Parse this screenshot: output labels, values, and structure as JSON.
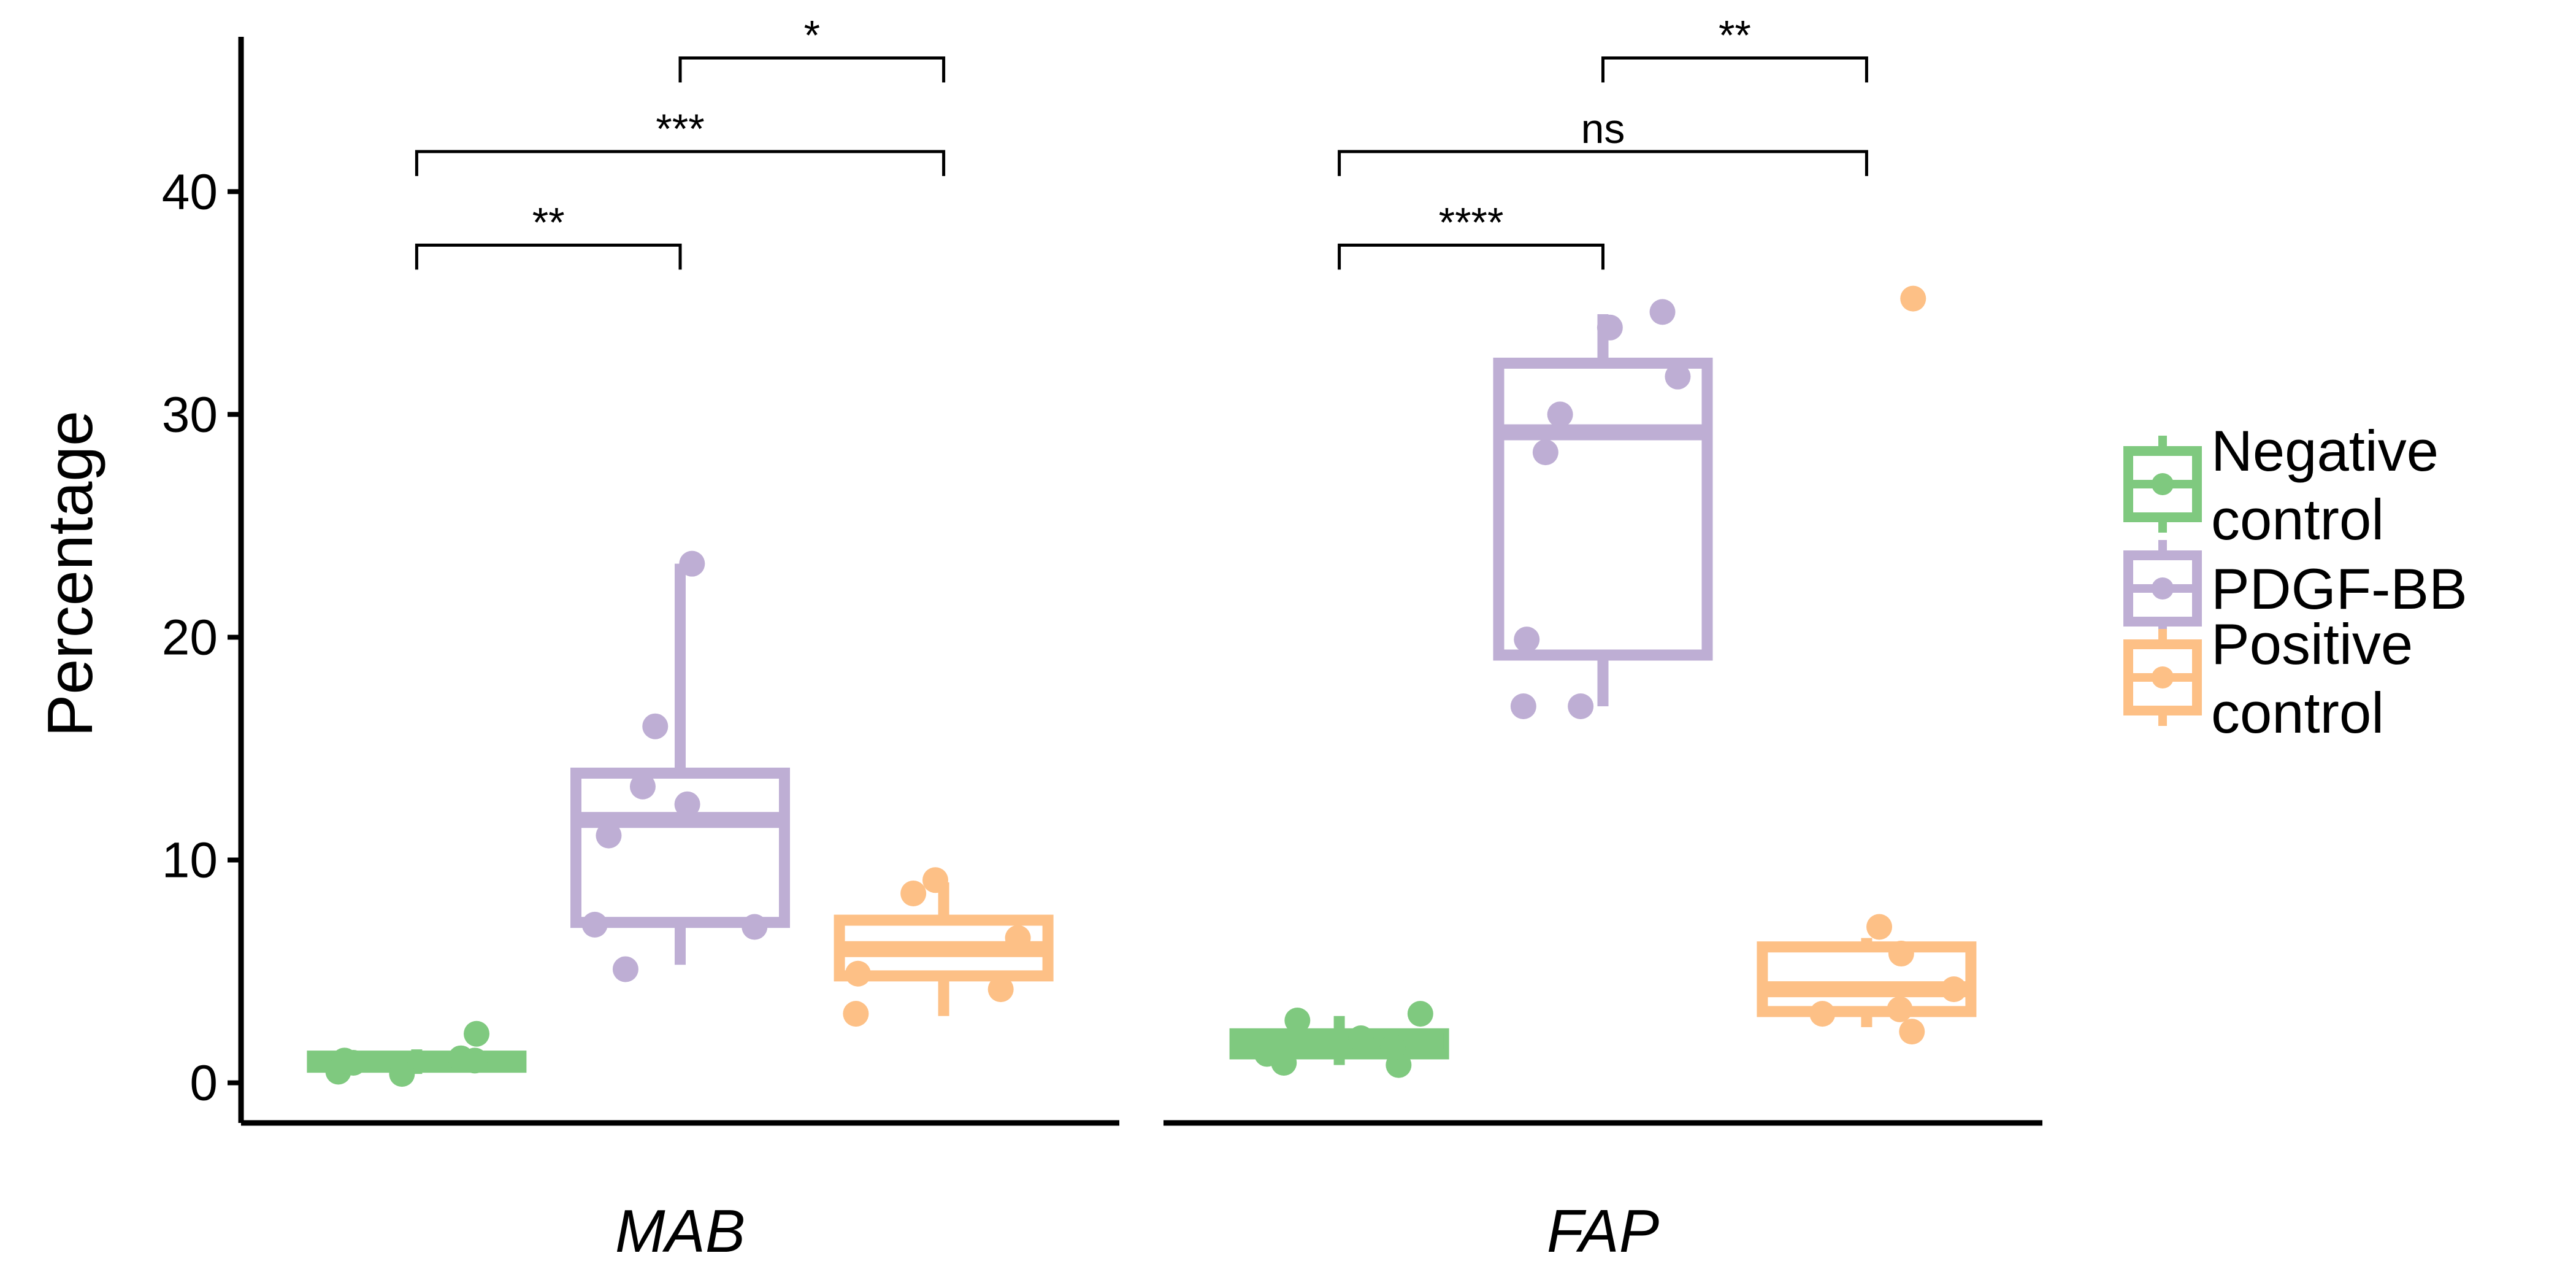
{
  "chart_data": {
    "type": "box",
    "ylabel": "Percentage",
    "ylim": [
      -1.8,
      47.5
    ],
    "yticks": [
      0,
      10,
      20,
      30,
      40
    ],
    "colors": {
      "Negative control": "#7fc97f",
      "PDGF-BB": "#beaed4",
      "Positive control": "#fdc086"
    },
    "legend": {
      "position": "right",
      "entries": [
        {
          "lines": [
            "Negative",
            "control"
          ],
          "color": "#7fc97f"
        },
        {
          "lines": [
            "PDGF-BB"
          ],
          "color": "#beaed4"
        },
        {
          "lines": [
            "Positive",
            "control"
          ],
          "color": "#fdc086"
        }
      ]
    },
    "facets": [
      {
        "label": "MAB",
        "groups": [
          {
            "name": "Negative control",
            "q1": 0.7,
            "median": 1.0,
            "q3": 1.2,
            "whisker_low": 0.4,
            "whisker_high": 1.5,
            "points": [
              1.1,
              0.5,
              0.4,
              2.2,
              0.9,
              1.0,
              1.0
            ]
          },
          {
            "name": "PDGF-BB",
            "q1": 7.2,
            "median": 11.8,
            "q3": 13.9,
            "whisker_low": 5.3,
            "whisker_high": 23.3,
            "points": [
              23.3,
              16.0,
              13.3,
              12.5,
              11.1,
              7.1,
              7.0,
              5.1
            ]
          },
          {
            "name": "Positive control",
            "q1": 4.8,
            "median": 6.0,
            "q3": 7.3,
            "whisker_low": 3.0,
            "whisker_high": 9.0,
            "points": [
              9.1,
              8.5,
              6.5,
              4.9,
              4.2,
              3.1
            ]
          }
        ],
        "comparisons": [
          {
            "from": "Negative control",
            "to": "PDGF-BB",
            "label": "**"
          },
          {
            "from": "Negative control",
            "to": "Positive control",
            "label": "***"
          },
          {
            "from": "PDGF-BB",
            "to": "Positive control",
            "label": "*"
          }
        ]
      },
      {
        "label": "FAP",
        "groups": [
          {
            "name": "Negative control",
            "q1": 1.3,
            "median": 1.9,
            "q3": 2.2,
            "whisker_low": 0.8,
            "whisker_high": 3.0,
            "points": [
              2.8,
              3.1,
              2.0,
              1.3,
              0.9,
              0.8,
              1.6
            ]
          },
          {
            "name": "PDGF-BB",
            "q1": 19.2,
            "median": 29.2,
            "q3": 32.3,
            "whisker_low": 16.9,
            "whisker_high": 34.5,
            "points": [
              34.6,
              33.9,
              31.7,
              30.0,
              28.3,
              19.9,
              16.9,
              16.9
            ]
          },
          {
            "name": "Positive control",
            "q1": 3.2,
            "median": 4.2,
            "q3": 6.1,
            "whisker_low": 2.5,
            "whisker_high": 6.5,
            "points": [
              35.2,
              7.0,
              5.8,
              4.2,
              3.3,
              3.1,
              2.3
            ]
          }
        ],
        "comparisons": [
          {
            "from": "Negative control",
            "to": "PDGF-BB",
            "label": "****"
          },
          {
            "from": "Negative control",
            "to": "Positive control",
            "label": "ns"
          },
          {
            "from": "PDGF-BB",
            "to": "Positive control",
            "label": "**"
          }
        ]
      }
    ]
  }
}
